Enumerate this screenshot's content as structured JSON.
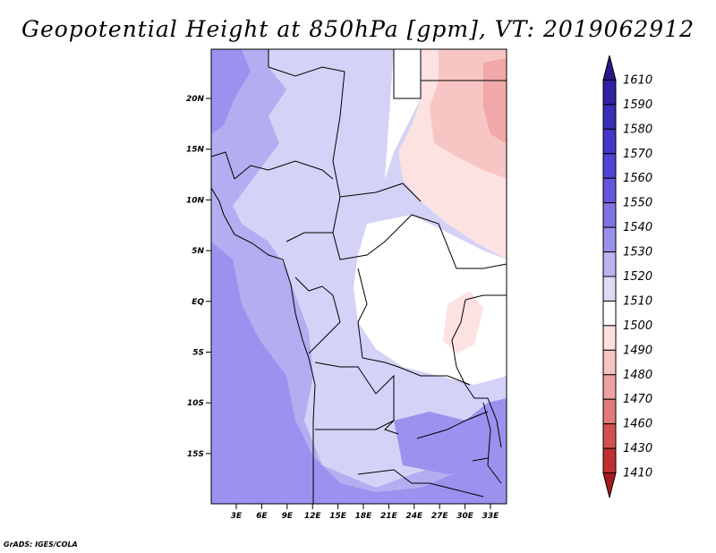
{
  "title": "Geopotential Height at 850hPa [gpm], VT: 2019062912",
  "credit": "GrADS: IGES/COLA",
  "lat_ticks": [
    "20N",
    "15N",
    "10N",
    "5N",
    "EQ",
    "5S",
    "10S",
    "15S"
  ],
  "lon_ticks": [
    "3E",
    "6E",
    "9E",
    "12E",
    "15E",
    "18E",
    "21E",
    "24E",
    "27E",
    "30E",
    "33E"
  ],
  "colorbar": {
    "levels": [
      "1610",
      "1590",
      "1580",
      "1570",
      "1560",
      "1550",
      "1540",
      "1530",
      "1520",
      "1510",
      "1500",
      "1490",
      "1480",
      "1470",
      "1460",
      "1430",
      "1410"
    ],
    "colors": [
      "#2a1888",
      "#3121a3",
      "#3a2db8",
      "#4535c8",
      "#5143d4",
      "#6656dc",
      "#7f73e4",
      "#9990ea",
      "#b9b3f0",
      "#dedbf7",
      "#ffffff",
      "#fde0e0",
      "#f8c3c3",
      "#eda0a0",
      "#e07a7a",
      "#d25050",
      "#c13030",
      "#a81818"
    ]
  },
  "field_colors": {
    "deep": "#9a92ee",
    "mid": "#b4adf2",
    "light": "#d5d2f8",
    "pale": "#e6e4fb",
    "neutral": "#ffffff",
    "pink_light": "#fde2e2",
    "pink_mid": "#f8c5c5",
    "pink_deep": "#f0a8a8"
  }
}
